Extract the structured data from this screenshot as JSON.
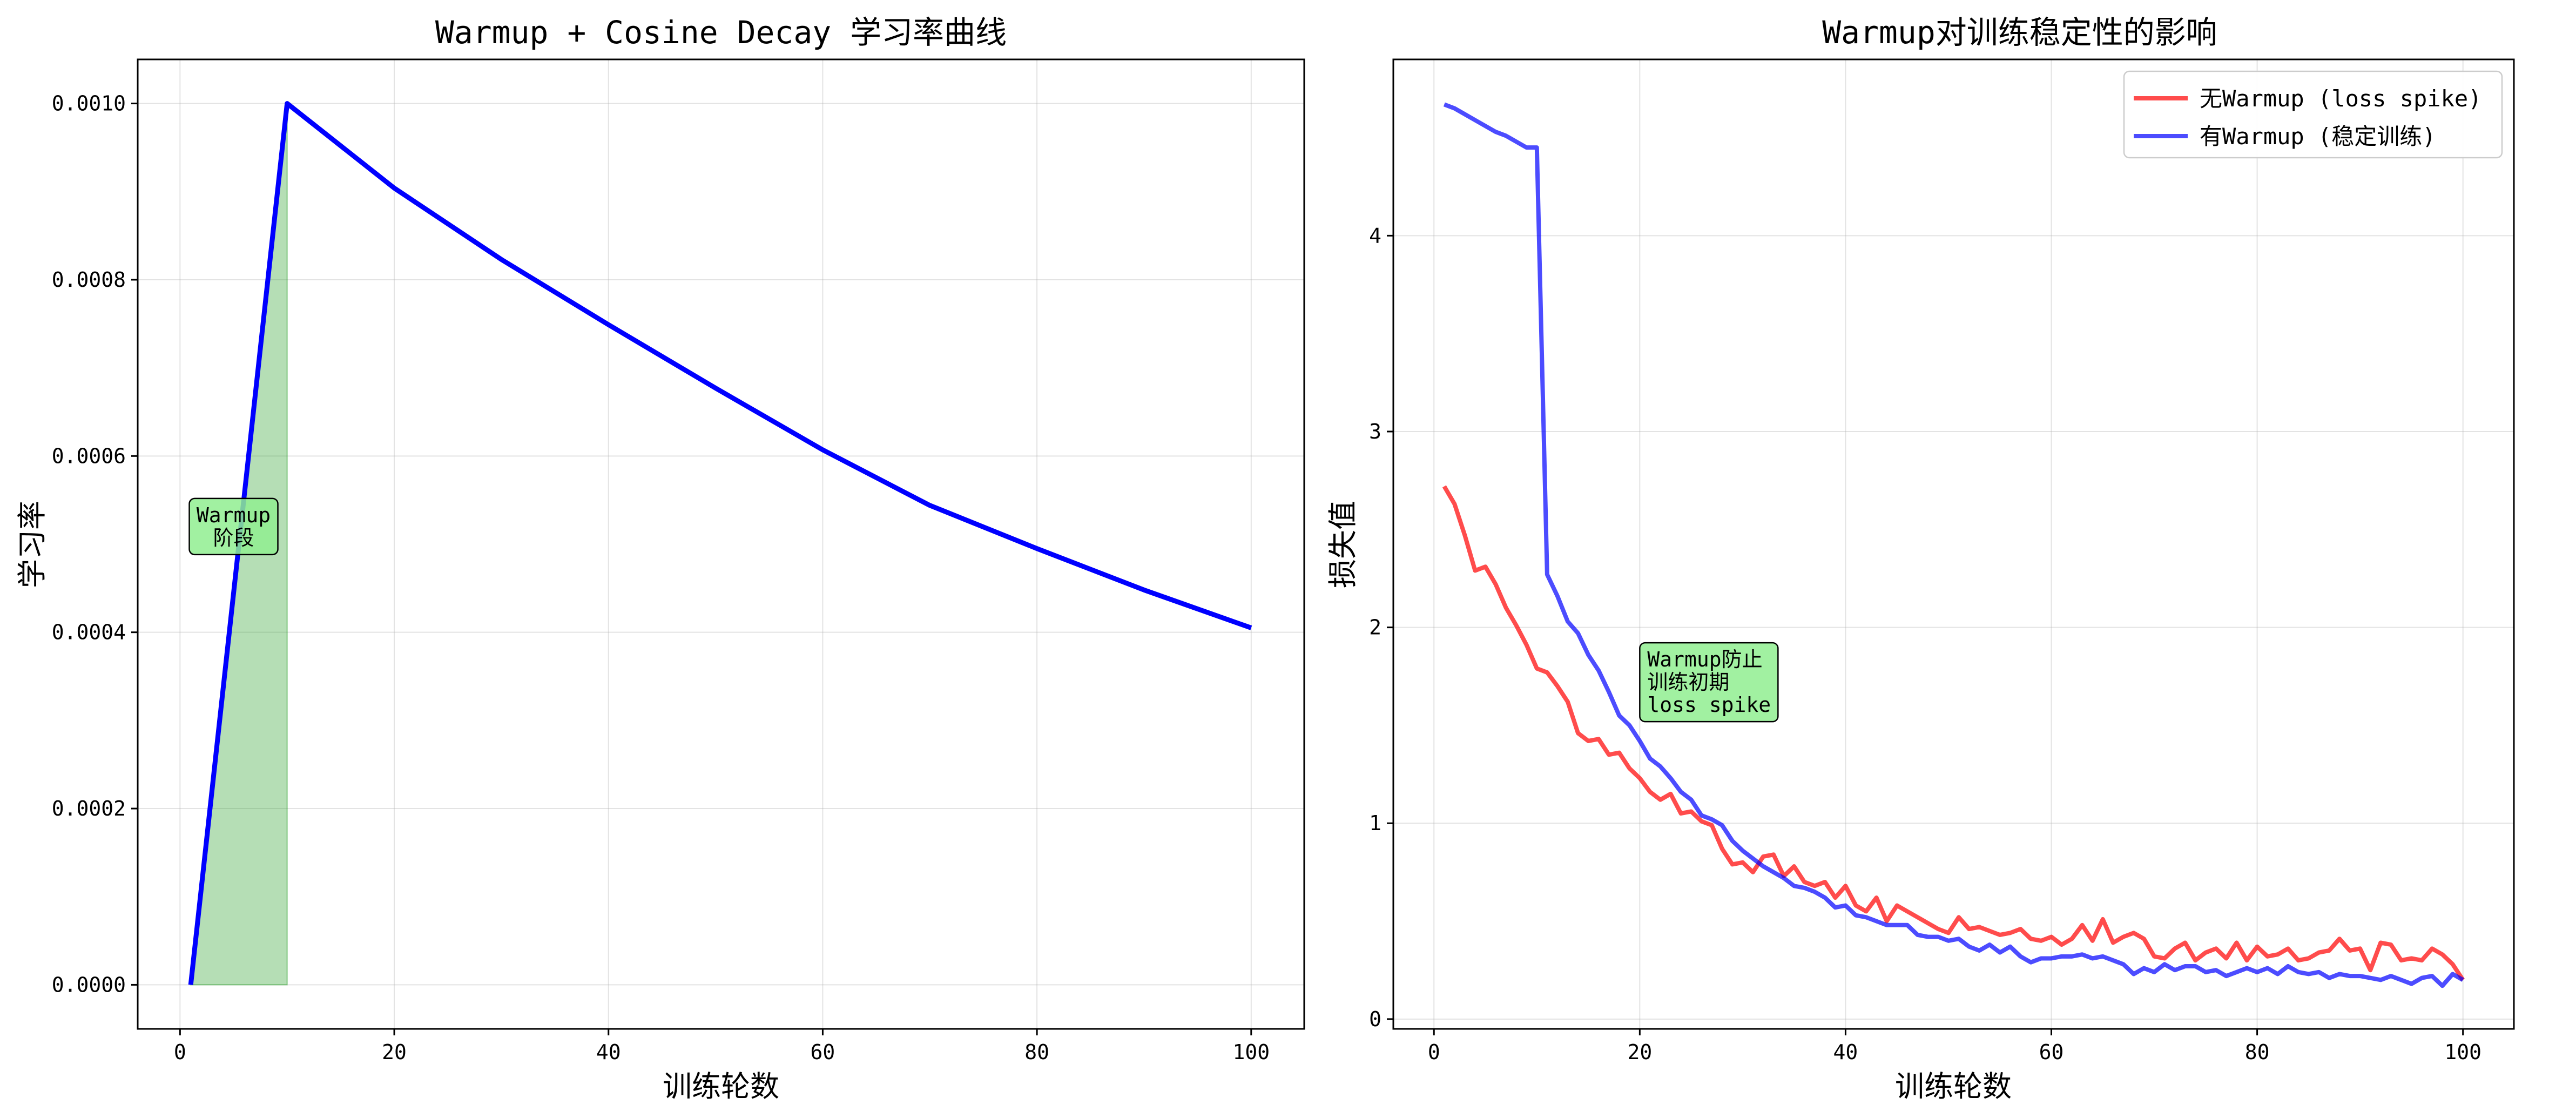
{
  "chart_data": [
    {
      "type": "line",
      "title": "Warmup + Cosine Decay 学习率曲线",
      "xlabel": "训练轮数",
      "ylabel": "学习率",
      "xlim": [
        -3.95,
        104.95
      ],
      "ylim": [
        -5e-05,
        0.00105
      ],
      "xticks": [
        0,
        20,
        40,
        60,
        80,
        100
      ],
      "yticks": [
        0.0,
        0.0002,
        0.0004,
        0.0006,
        0.0008,
        0.001
      ],
      "ytick_labels": [
        "0.0000",
        "0.0002",
        "0.0004",
        "0.0006",
        "0.0008",
        "0.0010"
      ],
      "grid": true,
      "warmup_fill": {
        "x_start": 1,
        "x_end": 10,
        "color": "#2ca02c",
        "alpha": 0.35
      },
      "annotation": {
        "lines": [
          "Warmup",
          "阶段"
        ],
        "x": 5,
        "y": 0.00052,
        "bg": "#90ee90"
      },
      "series": [
        {
          "color": "#0000ff",
          "x": [
            1,
            10,
            20,
            30,
            40,
            50,
            60,
            70,
            80,
            90,
            100
          ],
          "y": [
            0.0,
            0.001,
            0.000904,
            0.000823,
            0.000749,
            0.000677,
            0.000607,
            0.000544,
            0.000495,
            0.000448,
            0.000405
          ]
        }
      ]
    },
    {
      "type": "line",
      "title": "Warmup对训练稳定性的影响",
      "xlabel": "训练轮数",
      "ylabel": "损失值",
      "xlim": [
        -3.95,
        104.95
      ],
      "ylim": [
        -0.05,
        4.9
      ],
      "xticks": [
        0,
        20,
        40,
        60,
        80,
        100
      ],
      "yticks": [
        0,
        1,
        2,
        3,
        4
      ],
      "ytick_labels": [
        "0",
        "1",
        "2",
        "3",
        "4"
      ],
      "grid": true,
      "legend_position": "top-right",
      "annotation": {
        "lines": [
          "Warmup防止",
          "训练初期",
          "loss spike"
        ],
        "x": 20,
        "y": 1.72,
        "bg": "#90ee90"
      },
      "series": [
        {
          "name": "无Warmup (loss spike)",
          "color": "#ff0000",
          "x": [
            1,
            2,
            3,
            4,
            5,
            6,
            7,
            8,
            9,
            10,
            11,
            12,
            13,
            14,
            15,
            16,
            17,
            18,
            19,
            20,
            21,
            22,
            23,
            24,
            25,
            26,
            27,
            28,
            29,
            30,
            31,
            32,
            33,
            34,
            35,
            36,
            37,
            38,
            39,
            40,
            41,
            42,
            43,
            44,
            45,
            46,
            47,
            48,
            49,
            50,
            51,
            52,
            53,
            54,
            55,
            56,
            57,
            58,
            59,
            60,
            61,
            62,
            63,
            64,
            65,
            66,
            67,
            68,
            69,
            70,
            71,
            72,
            73,
            74,
            75,
            76,
            77,
            78,
            79,
            80,
            81,
            82,
            83,
            84,
            85,
            86,
            87,
            88,
            89,
            90,
            91,
            92,
            93,
            94,
            95,
            96,
            97,
            98,
            99,
            100
          ],
          "y": [
            2.72,
            2.63,
            2.47,
            2.29,
            2.31,
            2.22,
            2.1,
            2.01,
            1.91,
            1.79,
            1.77,
            1.7,
            1.62,
            1.46,
            1.42,
            1.43,
            1.35,
            1.36,
            1.28,
            1.23,
            1.16,
            1.12,
            1.15,
            1.05,
            1.06,
            1.01,
            0.99,
            0.87,
            0.79,
            0.8,
            0.75,
            0.83,
            0.84,
            0.73,
            0.78,
            0.7,
            0.68,
            0.7,
            0.62,
            0.68,
            0.58,
            0.55,
            0.62,
            0.5,
            0.58,
            0.55,
            0.52,
            0.49,
            0.46,
            0.44,
            0.52,
            0.46,
            0.47,
            0.45,
            0.43,
            0.44,
            0.46,
            0.41,
            0.4,
            0.42,
            0.38,
            0.41,
            0.48,
            0.4,
            0.51,
            0.39,
            0.42,
            0.44,
            0.41,
            0.32,
            0.31,
            0.36,
            0.39,
            0.3,
            0.34,
            0.36,
            0.31,
            0.39,
            0.3,
            0.37,
            0.32,
            0.33,
            0.36,
            0.3,
            0.31,
            0.34,
            0.35,
            0.41,
            0.35,
            0.36,
            0.25,
            0.39,
            0.38,
            0.3,
            0.31,
            0.3,
            0.36,
            0.33,
            0.28,
            0.2
          ]
        },
        {
          "name": "有Warmup (稳定训练)",
          "color": "#0000ff",
          "x": [
            1,
            2,
            3,
            4,
            5,
            6,
            7,
            8,
            9,
            10,
            11,
            12,
            13,
            14,
            15,
            16,
            17,
            18,
            19,
            20,
            21,
            22,
            23,
            24,
            25,
            26,
            27,
            28,
            29,
            30,
            31,
            32,
            33,
            34,
            35,
            36,
            37,
            38,
            39,
            40,
            41,
            42,
            43,
            44,
            45,
            46,
            47,
            48,
            49,
            50,
            51,
            52,
            53,
            54,
            55,
            56,
            57,
            58,
            59,
            60,
            61,
            62,
            63,
            64,
            65,
            66,
            67,
            68,
            69,
            70,
            71,
            72,
            73,
            74,
            75,
            76,
            77,
            78,
            79,
            80,
            81,
            82,
            83,
            84,
            85,
            86,
            87,
            88,
            89,
            90,
            91,
            92,
            93,
            94,
            95,
            96,
            97,
            98,
            99,
            100
          ],
          "y": [
            4.67,
            4.65,
            4.62,
            4.59,
            4.56,
            4.53,
            4.51,
            4.48,
            4.45,
            4.45,
            2.27,
            2.16,
            2.03,
            1.97,
            1.86,
            1.78,
            1.67,
            1.55,
            1.5,
            1.42,
            1.33,
            1.29,
            1.23,
            1.16,
            1.12,
            1.04,
            1.02,
            0.99,
            0.91,
            0.86,
            0.82,
            0.78,
            0.75,
            0.72,
            0.68,
            0.67,
            0.65,
            0.62,
            0.57,
            0.58,
            0.53,
            0.52,
            0.5,
            0.48,
            0.48,
            0.48,
            0.43,
            0.42,
            0.42,
            0.4,
            0.41,
            0.37,
            0.35,
            0.38,
            0.34,
            0.37,
            0.32,
            0.29,
            0.31,
            0.31,
            0.32,
            0.32,
            0.33,
            0.31,
            0.32,
            0.3,
            0.28,
            0.23,
            0.26,
            0.24,
            0.28,
            0.25,
            0.27,
            0.27,
            0.24,
            0.25,
            0.22,
            0.24,
            0.26,
            0.24,
            0.26,
            0.23,
            0.27,
            0.24,
            0.23,
            0.24,
            0.21,
            0.23,
            0.22,
            0.22,
            0.21,
            0.2,
            0.22,
            0.2,
            0.18,
            0.21,
            0.22,
            0.17,
            0.23,
            0.2
          ]
        }
      ]
    }
  ]
}
